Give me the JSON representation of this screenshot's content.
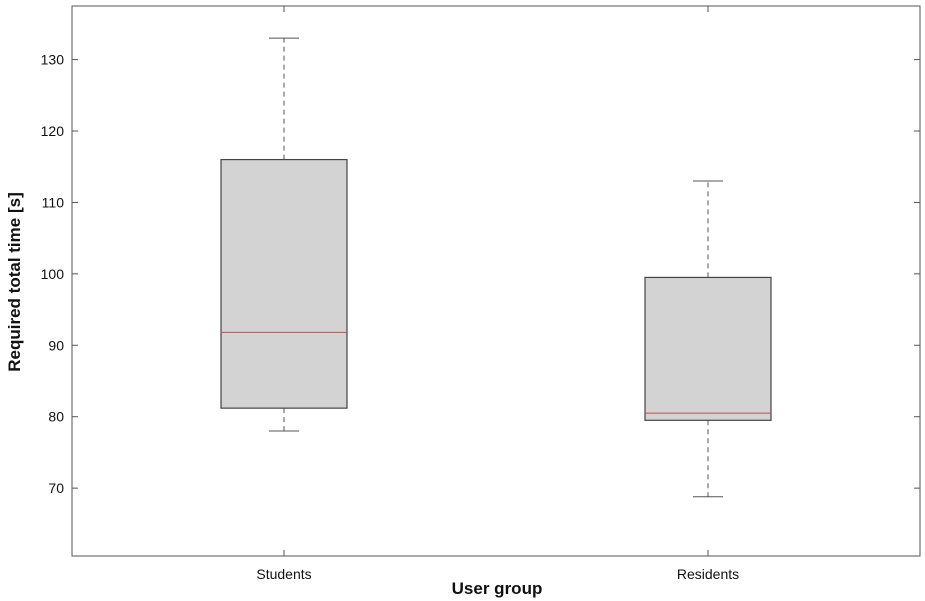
{
  "chart_data": {
    "type": "box",
    "title": "",
    "xlabel": "User group",
    "ylabel": "Required total time [s]",
    "ylim": [
      60.5,
      137.5
    ],
    "yticks": [
      70,
      80,
      90,
      100,
      110,
      120,
      130
    ],
    "categories": [
      "Students",
      "Residents"
    ],
    "boxes": [
      {
        "label": "Students",
        "whisker_low": 78,
        "q1": 81.2,
        "median": 91.8,
        "q3": 116,
        "whisker_high": 133
      },
      {
        "label": "Residents",
        "whisker_low": 68.8,
        "q1": 79.5,
        "median": 80.5,
        "q3": 99.5,
        "whisker_high": 113
      }
    ],
    "grid": false,
    "legend": "none",
    "colors": {
      "box_fill": "#d3d3d3",
      "box_edge": "#444444",
      "median": "#c0504d",
      "whisker": "#555555",
      "axis": "#555555"
    }
  }
}
